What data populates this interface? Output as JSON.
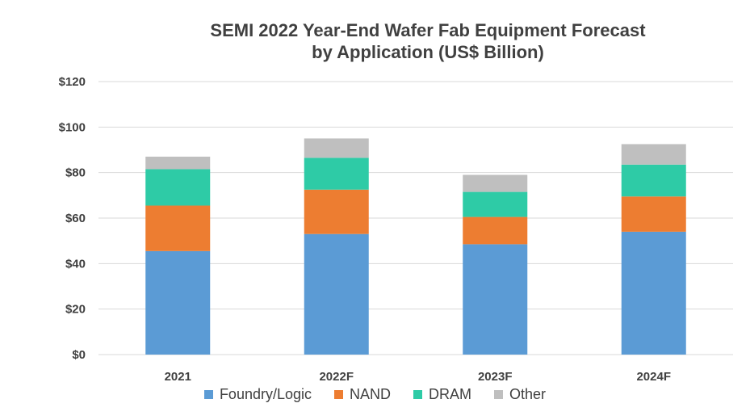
{
  "chart_data": {
    "type": "bar",
    "stacked": true,
    "title_line1": "SEMI 2022 Year-End Wafer Fab Equipment Forecast",
    "title_line2": "by Application (US$ Billion)",
    "categories": [
      "2021",
      "2022F",
      "2023F",
      "2024F"
    ],
    "ylim": [
      0,
      120
    ],
    "yticks": [
      "$0",
      "$20",
      "$40",
      "$60",
      "$80",
      "$100",
      "$120"
    ],
    "grid": true,
    "legend_position": "bottom",
    "series": [
      {
        "name": "Foundry/Logic",
        "color": "#5B9BD5",
        "values": [
          45.5,
          53,
          48.5,
          54
        ]
      },
      {
        "name": "NAND",
        "color": "#ED7D31",
        "values": [
          20,
          19.5,
          12,
          15.5
        ]
      },
      {
        "name": "DRAM",
        "color": "#2ECBA6",
        "values": [
          16,
          14,
          11,
          14
        ]
      },
      {
        "name": "Other",
        "color": "#BFBFBF",
        "values": [
          5.5,
          8.5,
          7.5,
          9
        ]
      }
    ]
  }
}
